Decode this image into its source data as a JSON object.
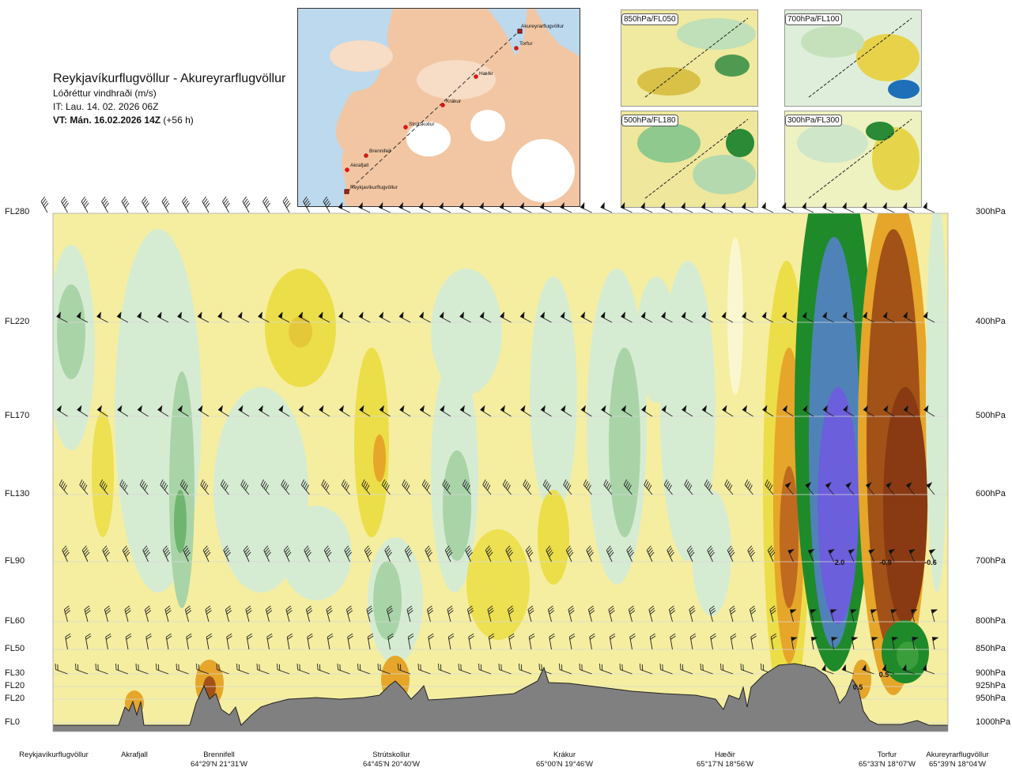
{
  "header": {
    "route": "Reykjavíkurflugvöllur - Akureyrarflugvöllur",
    "variable": "Lóðréttur vindhraði (m/s)",
    "issue_time": "IT: Lau. 14. 02. 2026 06Z",
    "valid_prefix": "VT: Mán. 16.02.2026 14Z",
    "valid_suffix": " (+56 h)"
  },
  "map": {
    "stations": [
      "Akureyrarflugvöllur",
      "Torfur",
      "Hæðir",
      "Krákur",
      "Strútskollur",
      "Brennifell",
      "Akrafjall",
      "Reykjavíkurflugvöllur"
    ]
  },
  "insets": [
    {
      "label": "850hPa/FL050"
    },
    {
      "label": "700hPa/FL100"
    },
    {
      "label": "500hPa/FL180"
    },
    {
      "label": "300hPa/FL300"
    }
  ],
  "chart_data": {
    "type": "heatmap",
    "title": "Lóðréttur vindhraði (m/s)",
    "y_left_ticks": [
      "FL280",
      "FL220",
      "FL170",
      "FL130",
      "FL90",
      "FL60",
      "FL50",
      "FL30",
      "FL20",
      "FL20",
      "FL0"
    ],
    "y_right_ticks": [
      "300hPa",
      "400hPa",
      "500hPa",
      "600hPa",
      "700hPa",
      "800hPa",
      "850hPa",
      "900hPa",
      "925hPa",
      "950hPa",
      "1000hPa"
    ],
    "y_range_hPa": [
      1000,
      300
    ],
    "x_locations": [
      {
        "name": "Reykjavíkurflugvöllur",
        "coord": ""
      },
      {
        "name": "Akrafjall",
        "coord": ""
      },
      {
        "name": "Brennifell",
        "coord": "64°29'N 21°31'W"
      },
      {
        "name": "Strútskollur",
        "coord": "64°45'N 20°40'W"
      },
      {
        "name": "Krákur",
        "coord": "65°00'N 19°46'W"
      },
      {
        "name": "Hæðir",
        "coord": "65°17'N 18°56'W"
      },
      {
        "name": "Torfur",
        "coord": "65°33'N 18°07'W"
      },
      {
        "name": "Akureyrarflugvöllur",
        "coord": "65°39'N 18°04'W"
      }
    ],
    "contour_labels": [
      "2.0",
      "-0.9",
      "-0.6",
      "0.5",
      "0.5"
    ],
    "colors": {
      "neutral": "#f5eea0",
      "weak_up": "#d6ecd2",
      "mod_up": "#a9d4a8",
      "strong_up": "#1f8a2a",
      "very_strong_up": "#4f83b7",
      "extreme_up": "#6b5fdc",
      "weak_down": "#ecde48",
      "mod_down": "#e6a62a",
      "strong_down": "#a25217",
      "very_strong_down": "#8a3a12",
      "terrain": "#808080"
    }
  }
}
